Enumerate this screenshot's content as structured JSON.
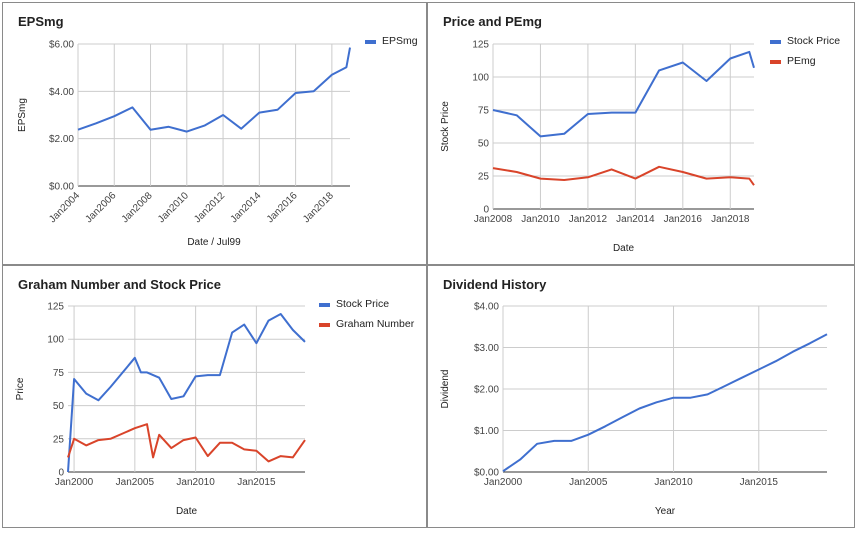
{
  "chart_data": [
    {
      "type": "line",
      "title": "EPSmg",
      "xlabel": "Date / Jul99",
      "ylabel": "EPSmg",
      "x_tick_labels": [
        "Jan2004",
        "Jan2006",
        "Jan2008",
        "Jan2010",
        "Jan2012",
        "Jan2014",
        "Jan2016",
        "Jan2018"
      ],
      "y_tick_labels": [
        "$0.00",
        "$2.00",
        "$4.00",
        "$6.00"
      ],
      "xlim": [
        2004,
        2019.0
      ],
      "ylim": [
        0,
        6
      ],
      "grid": true,
      "legend": "top-right",
      "series": [
        {
          "name": "EPSmg",
          "color": "#3f6fcf",
          "x": [
            2004,
            2005,
            2006,
            2007,
            2008,
            2009,
            2010,
            2011,
            2012,
            2013,
            2014,
            2015,
            2016,
            2017,
            2018,
            2018.8,
            2019.0
          ],
          "y": [
            2.38,
            2.65,
            2.95,
            3.32,
            2.38,
            2.5,
            2.3,
            2.56,
            3.0,
            2.42,
            3.1,
            3.22,
            3.93,
            4.0,
            4.7,
            5.02,
            5.85
          ]
        }
      ]
    },
    {
      "type": "line",
      "title": "Price and PEmg",
      "xlabel": "Date",
      "ylabel": "Stock Price",
      "x_tick_labels": [
        "Jan2008",
        "Jan2010",
        "Jan2012",
        "Jan2014",
        "Jan2016",
        "Jan2018"
      ],
      "y_tick_labels": [
        "0",
        "25",
        "50",
        "75",
        "100",
        "125"
      ],
      "xlim": [
        2008,
        2019.0
      ],
      "ylim": [
        0,
        125
      ],
      "grid": true,
      "legend": "top-right",
      "series": [
        {
          "name": "Stock Price",
          "color": "#3f6fcf",
          "x": [
            2008,
            2009,
            2010,
            2011,
            2012,
            2013,
            2014,
            2015,
            2016,
            2017,
            2018,
            2018.8,
            2019.0
          ],
          "y": [
            75,
            71,
            55,
            57,
            72,
            73,
            73,
            105,
            111,
            97,
            114,
            119,
            107
          ]
        },
        {
          "name": "PEmg",
          "color": "#d9442a",
          "x": [
            2008,
            2009,
            2010,
            2011,
            2012,
            2013,
            2014,
            2015,
            2016,
            2017,
            2018,
            2018.8,
            2019.0
          ],
          "y": [
            31,
            28,
            23,
            22,
            24,
            30,
            23,
            32,
            28,
            23,
            24,
            23,
            18
          ]
        }
      ]
    },
    {
      "type": "line",
      "title": "Graham Number and Stock Price",
      "xlabel": "Date",
      "ylabel": "Price",
      "x_tick_labels": [
        "Jan2000",
        "Jan2005",
        "Jan2010",
        "Jan2015"
      ],
      "y_tick_labels": [
        "0",
        "25",
        "50",
        "75",
        "100",
        "125"
      ],
      "xlim": [
        1999.5,
        2019.0
      ],
      "ylim": [
        0,
        125
      ],
      "grid": true,
      "legend": "top-right",
      "series": [
        {
          "name": "Stock Price",
          "color": "#3f6fcf",
          "x": [
            1999.5,
            2000,
            2001,
            2002,
            2003,
            2004,
            2005,
            2005.5,
            2006,
            2007,
            2008,
            2009,
            2010,
            2011,
            2012,
            2013,
            2014,
            2015,
            2016,
            2017,
            2018,
            2019
          ],
          "y": [
            0,
            70,
            59,
            54,
            64,
            75,
            86,
            75,
            75,
            71,
            55,
            57,
            72,
            73,
            73,
            105,
            111,
            97,
            114,
            119,
            107,
            98
          ]
        },
        {
          "name": "Graham Number",
          "color": "#d9442a",
          "x": [
            1999.5,
            2000,
            2001,
            2002,
            2003,
            2004,
            2005,
            2006,
            2006.5,
            2007,
            2008,
            2009,
            2010,
            2011,
            2012,
            2013,
            2014,
            2015,
            2016,
            2017,
            2018,
            2019
          ],
          "y": [
            11,
            25,
            20,
            24,
            25,
            29,
            33,
            36,
            11,
            28,
            18,
            24,
            26,
            12,
            22,
            22,
            17,
            16,
            8,
            12,
            11,
            24
          ]
        }
      ]
    },
    {
      "type": "line",
      "title": "Dividend History",
      "xlabel": "Year",
      "ylabel": "Dividend",
      "x_tick_labels": [
        "Jan2000",
        "Jan2005",
        "Jan2010",
        "Jan2015"
      ],
      "y_tick_labels": [
        "$0.00",
        "$1.00",
        "$2.00",
        "$3.00",
        "$4.00"
      ],
      "xlim": [
        2000,
        2019.0
      ],
      "ylim": [
        0,
        4
      ],
      "grid": true,
      "series": [
        {
          "name": "",
          "color": "#3f6fcf",
          "x": [
            2000,
            2001,
            2002,
            2003,
            2004,
            2005,
            2006,
            2007,
            2008,
            2009,
            2010,
            2011,
            2012,
            2013,
            2014,
            2015,
            2016,
            2017,
            2018,
            2019
          ],
          "y": [
            0.02,
            0.3,
            0.68,
            0.75,
            0.75,
            0.9,
            1.1,
            1.32,
            1.53,
            1.68,
            1.79,
            1.79,
            1.87,
            2.07,
            2.27,
            2.47,
            2.67,
            2.9,
            3.1,
            3.32
          ]
        }
      ]
    }
  ]
}
